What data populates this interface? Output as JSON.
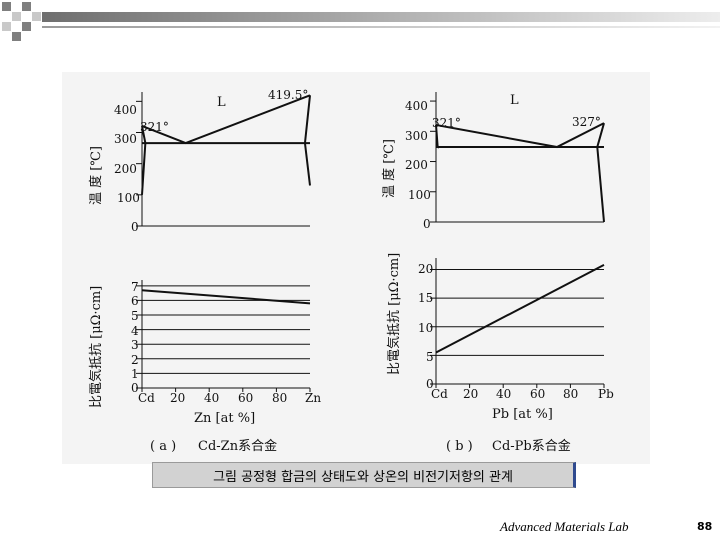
{
  "caption": "그림  공정형 합금의 상태도와 상온의 비전기저항의 관계",
  "footer": {
    "lab": "Advanced Materials Lab",
    "page_number": "88"
  },
  "colors": {
    "square_dark": "#7f7f7f",
    "square_light": "#c9c9c9",
    "line": "#111111",
    "caption_accent": "#2f4a8f"
  },
  "chart_data": [
    {
      "type": "line",
      "panel_label": "( a )",
      "system_label": "Cd-Zn系合金",
      "x_axis": {
        "label": "Zn [at %]",
        "tick_labels": [
          "Cd",
          "20",
          "40",
          "60",
          "80",
          "Zn"
        ],
        "xlim": [
          0,
          100
        ]
      },
      "temperature": {
        "ylabel": "温  度 [℃]",
        "yticks": [
          "0",
          "100",
          "200",
          "300",
          "400"
        ],
        "ylim": [
          0,
          430
        ],
        "region_label": "L",
        "annotations": [
          "321°",
          "419.5°"
        ],
        "liquidus": {
          "x": [
            0,
            26,
            100
          ],
          "y": [
            321,
            266,
            419.5
          ]
        },
        "eutectic": {
          "x": [
            0,
            100
          ],
          "y": [
            266,
            266
          ]
        },
        "solvus_left": {
          "x": [
            0,
            2,
            0
          ],
          "y": [
            100,
            266,
            321
          ]
        },
        "solvus_right": {
          "x": [
            100,
            97,
            100
          ],
          "y": [
            419.5,
            266,
            130
          ]
        }
      },
      "resistivity": {
        "ylabel": "比電気抵抗 [μΩ·cm]",
        "yticks": [
          "0",
          "1",
          "2",
          "3",
          "4",
          "5",
          "6",
          "7"
        ],
        "ylim": [
          0,
          7.4
        ],
        "line": {
          "x": [
            0,
            100
          ],
          "y": [
            6.7,
            5.8
          ]
        }
      }
    },
    {
      "type": "line",
      "panel_label": "( b )",
      "system_label": "Cd-Pb系合金",
      "x_axis": {
        "label": "Pb [at %]",
        "tick_labels": [
          "Cd",
          "20",
          "40",
          "60",
          "80",
          "Pb"
        ],
        "xlim": [
          0,
          100
        ]
      },
      "temperature": {
        "ylabel": "温  度 [℃]",
        "yticks": [
          "0",
          "100",
          "200",
          "300",
          "400"
        ],
        "ylim": [
          0,
          430
        ],
        "region_label": "L",
        "annotations": [
          "321°",
          "327°"
        ],
        "liquidus": {
          "x": [
            0,
            72,
            100
          ],
          "y": [
            321,
            248,
            327
          ]
        },
        "eutectic": {
          "x": [
            0,
            100
          ],
          "y": [
            248,
            248
          ]
        },
        "solvus_left": {
          "x": [
            0,
            1,
            0
          ],
          "y": [
            250,
            248,
            321
          ]
        },
        "solvus_right": {
          "x": [
            100,
            96,
            100
          ],
          "y": [
            327,
            248,
            0
          ]
        }
      },
      "resistivity": {
        "ylabel": "比電気抵抗 [μΩ·cm]",
        "yticks": [
          "0",
          "5",
          "10",
          "15",
          "20"
        ],
        "ylim": [
          0,
          22
        ],
        "line": {
          "x": [
            0,
            100
          ],
          "y": [
            5.5,
            20.8
          ]
        }
      }
    }
  ]
}
